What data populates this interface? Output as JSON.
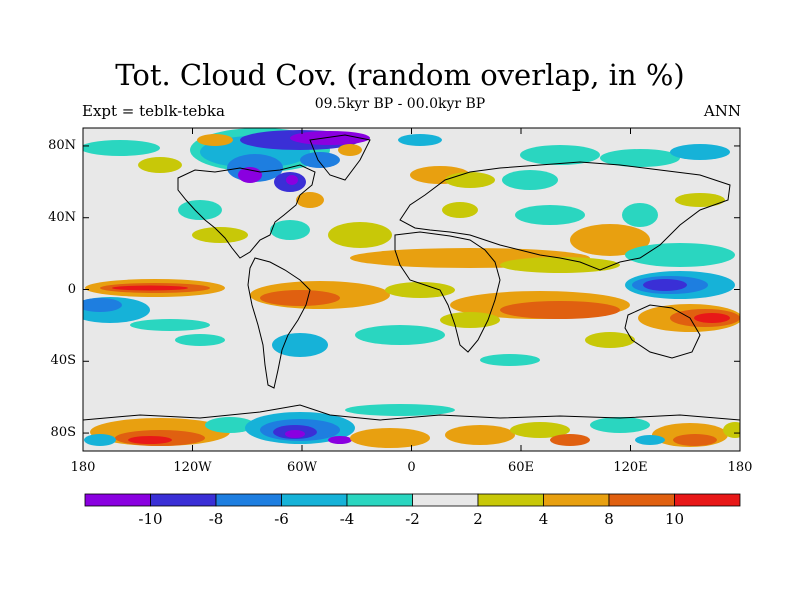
{
  "title": "Tot. Cloud Cov. (random overlap, in %)",
  "labels": {
    "left": "Expt = teblk-tebka",
    "center": "09.5kyr BP - 00.0kyr BP",
    "right": "ANN"
  },
  "axes": {
    "lon_ticks": [
      "180",
      "120W",
      "60W",
      "0",
      "60E",
      "120E",
      "180"
    ],
    "lat_ticks": [
      "80N",
      "40N",
      "0",
      "40S",
      "80S"
    ]
  },
  "colorbar": {
    "labels": [
      "-10",
      "-8",
      "-6",
      "-4",
      "-2",
      "2",
      "4",
      "8",
      "10"
    ],
    "colors": [
      "#8a00e0",
      "#3a2fd6",
      "#1e7ee0",
      "#16b2d8",
      "#2ad6c0",
      "#e8e8e8",
      "#c8c808",
      "#e8a010",
      "#e06010",
      "#e81818"
    ]
  },
  "map": {
    "background_color": "#e8e8e8",
    "projection": "cylindrical-equidistant",
    "lon_range": [
      -180,
      180
    ],
    "lat_range": [
      -90,
      90
    ]
  }
}
